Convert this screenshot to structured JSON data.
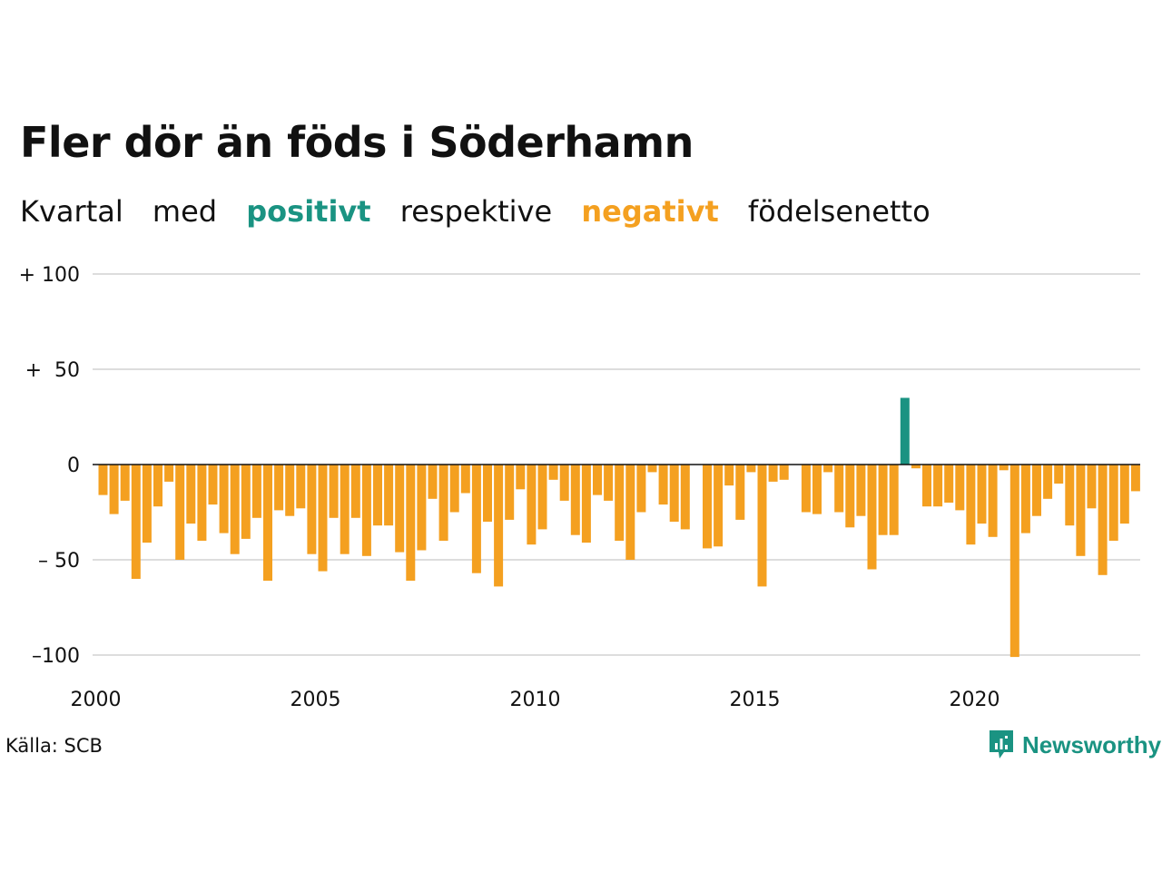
{
  "title": "Fler dör än föds i Söderhamn",
  "subtitle": {
    "word1": "Kvartal",
    "word2": "med",
    "positive": "positivt",
    "word3": "respektive",
    "negative": "negativt",
    "word4": "födelsenetto"
  },
  "source": "Källa: SCB",
  "logo": {
    "text": "Newsworthy",
    "icon": "newsworthy-bar-chart-icon"
  },
  "colors": {
    "positive": "#1a9382",
    "negative": "#f4a020",
    "grid": "#dddddd",
    "zero_line": "#111111",
    "logo": "#1a9382"
  },
  "chart_data": {
    "type": "bar",
    "title": "Fler dör än föds i Söderhamn",
    "subtitle": "Kvartal med positivt respektive negativt födelsenetto",
    "xlabel": "",
    "ylabel": "",
    "frequency": "quarterly",
    "x_start": "2000 Q1",
    "x_tick_labels": [
      "2000",
      "2005",
      "2010",
      "2015",
      "2020"
    ],
    "y_tick_values": [
      100,
      50,
      0,
      -50,
      -100
    ],
    "y_tick_labels": [
      "+ 100",
      "+  50",
      "0",
      "– 50",
      "–100"
    ],
    "ylim": [
      -102,
      100
    ],
    "grid": true,
    "values": [
      -16,
      -26,
      -19,
      -60,
      -41,
      -22,
      -9,
      -50,
      -31,
      -40,
      -21,
      -36,
      -47,
      -39,
      -28,
      -61,
      -24,
      -27,
      -23,
      -47,
      -56,
      -28,
      -47,
      -28,
      -48,
      -32,
      -32,
      -46,
      -61,
      -45,
      -18,
      -40,
      -25,
      -15,
      -57,
      -30,
      -64,
      -29,
      -13,
      -42,
      -34,
      -8,
      -19,
      -37,
      -41,
      -16,
      -19,
      -40,
      -50,
      -25,
      -4,
      -21,
      -30,
      -34,
      0,
      -44,
      -43,
      -11,
      -29,
      -4,
      -64,
      -9,
      -8,
      0,
      -25,
      -26,
      -4,
      -25,
      -33,
      -27,
      -55,
      -37,
      -37,
      35,
      -2,
      -22,
      -22,
      -20,
      -24,
      -42,
      -31,
      -38,
      -3,
      -101,
      -36,
      -27,
      -18,
      -10,
      -32,
      -48,
      -23,
      -58,
      -40,
      -31,
      -14
    ]
  }
}
